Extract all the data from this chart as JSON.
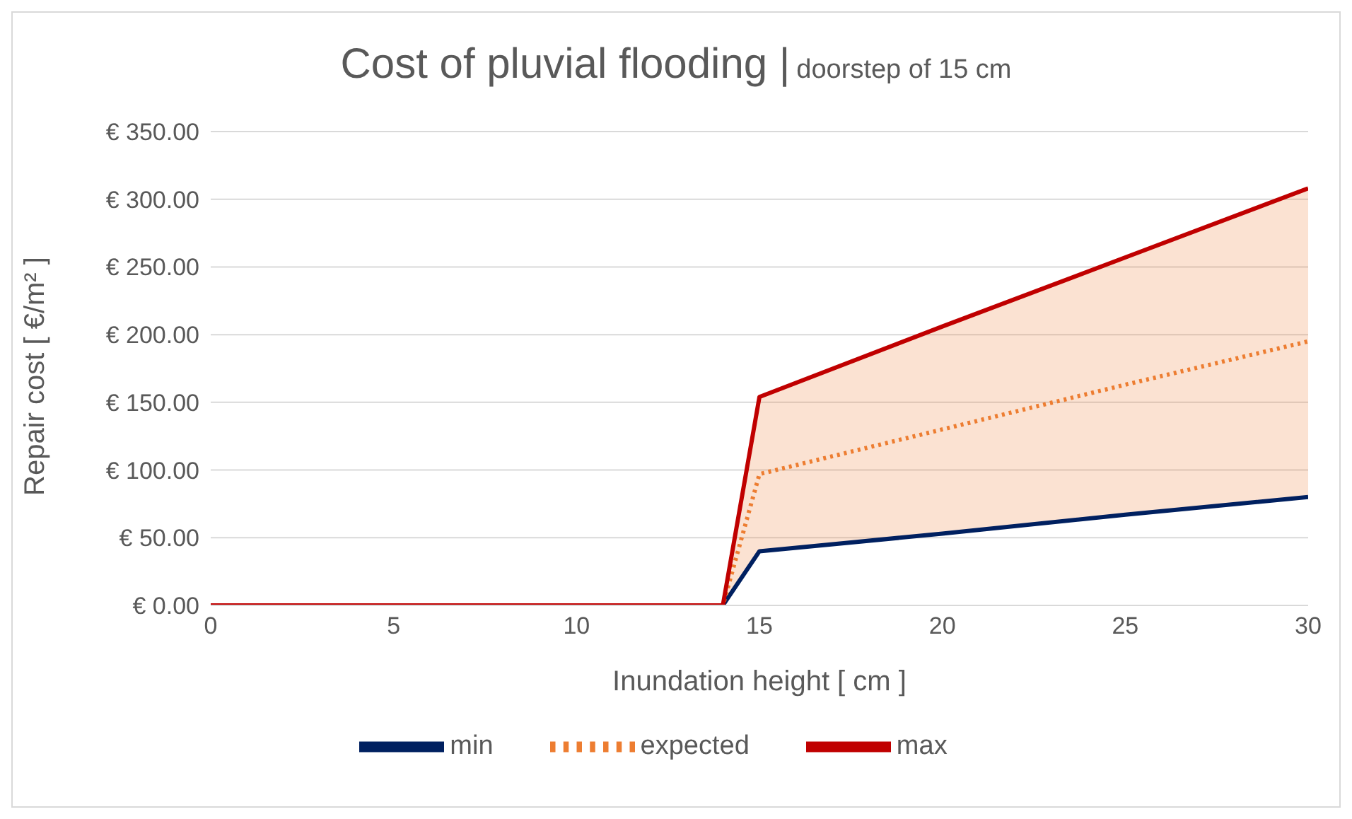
{
  "chart_data": {
    "type": "line",
    "title": "Cost of pluvial flooding |",
    "subtitle": "doorstep of 15 cm",
    "xlabel": "Inundation height [ cm ]",
    "ylabel": "Repair cost [ €/m² ]",
    "x": [
      0,
      14,
      15,
      20,
      25,
      30
    ],
    "series": [
      {
        "name": "min",
        "color": "#002060",
        "line_style": "solid",
        "values": [
          0,
          0,
          40,
          53,
          67,
          80
        ]
      },
      {
        "name": "expected",
        "color": "#ed7d31",
        "line_style": "dotted",
        "values": [
          0,
          0,
          97,
          130,
          163,
          195
        ],
        "lower": [
          0,
          0,
          40,
          53,
          67,
          80
        ],
        "upper": [
          0,
          0,
          154,
          206,
          257,
          308
        ]
      },
      {
        "name": "max",
        "color": "#c00000",
        "line_style": "solid",
        "values": [
          0,
          0,
          154,
          206,
          257,
          308
        ]
      }
    ],
    "xlim": [
      0,
      30
    ],
    "xticks": [
      0,
      5,
      10,
      15,
      20,
      25,
      30
    ],
    "ylim": [
      0,
      350
    ],
    "yticks": [
      {
        "value": 0,
        "label": "€ 0.00"
      },
      {
        "value": 50,
        "label": "€ 50.00"
      },
      {
        "value": 100,
        "label": "€ 100.00"
      },
      {
        "value": 150,
        "label": "€ 150.00"
      },
      {
        "value": 200,
        "label": "€ 200.00"
      },
      {
        "value": 250,
        "label": "€ 250.00"
      },
      {
        "value": 300,
        "label": "€ 300.00"
      },
      {
        "value": 350,
        "label": "€ 350.00"
      }
    ],
    "grid": "y",
    "legend": "bottom",
    "marker": "none"
  }
}
